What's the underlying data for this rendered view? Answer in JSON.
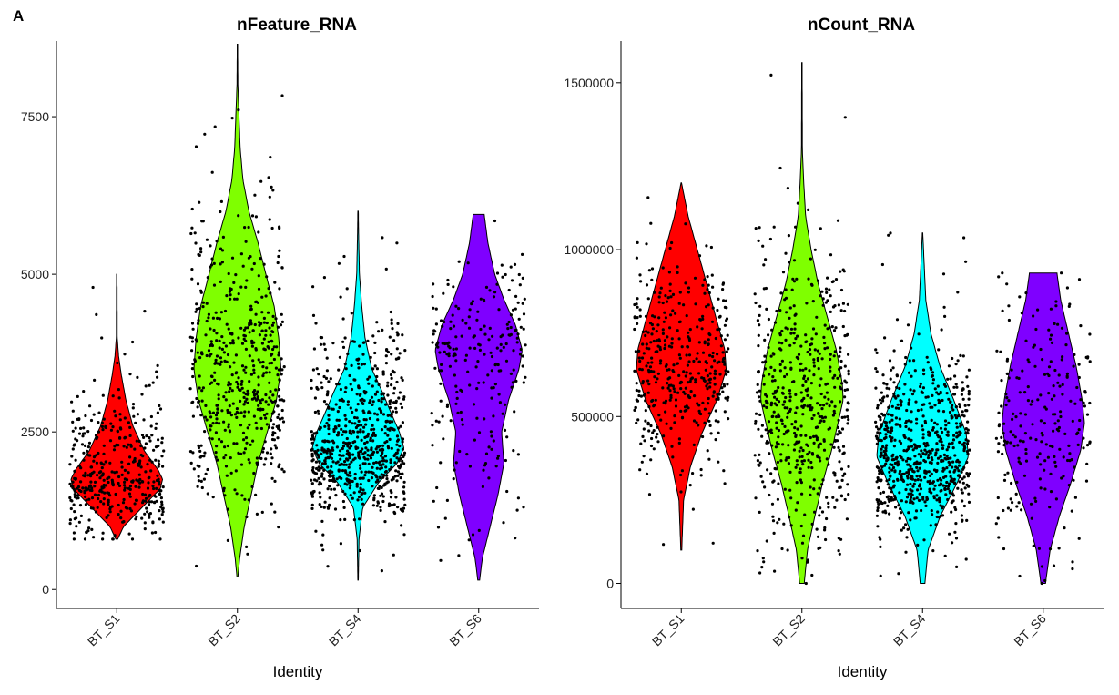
{
  "panel_label": "A",
  "chart_data": [
    {
      "type": "violin",
      "title": "nFeature_RNA",
      "xlabel": "Identity",
      "ylabel": "",
      "categories": [
        "BT_S1",
        "BT_S2",
        "BT_S4",
        "BT_S6"
      ],
      "colors": [
        "#FF0000",
        "#7FFF00",
        "#00FFFF",
        "#7F00FF"
      ],
      "ylim": [
        -300,
        8700
      ],
      "yticks": [
        0,
        2500,
        5000,
        7500
      ],
      "ytick_labels": [
        "0",
        "2500",
        "5000",
        "7500"
      ],
      "points_per_group": [
        420,
        560,
        720,
        240
      ],
      "groups": [
        {
          "name": "BT_S1",
          "min": 800,
          "max": 5000,
          "mode": 1750,
          "spread_low": 450,
          "spread_high": 700,
          "shape": [
            [
              800,
              0.02
            ],
            [
              1000,
              0.15
            ],
            [
              1300,
              0.55
            ],
            [
              1600,
              0.95
            ],
            [
              1750,
              1.0
            ],
            [
              1900,
              0.9
            ],
            [
              2200,
              0.6
            ],
            [
              2600,
              0.35
            ],
            [
              3000,
              0.2
            ],
            [
              3400,
              0.1
            ],
            [
              3700,
              0.04
            ],
            [
              4000,
              0.01
            ],
            [
              5000,
              0.005
            ]
          ]
        },
        {
          "name": "BT_S2",
          "min": 200,
          "max": 8650,
          "mode": 3500,
          "spread_low": 1100,
          "spread_high": 1200,
          "shape": [
            [
              200,
              0.01
            ],
            [
              500,
              0.05
            ],
            [
              1000,
              0.15
            ],
            [
              1500,
              0.3
            ],
            [
              2000,
              0.45
            ],
            [
              2500,
              0.65
            ],
            [
              3000,
              0.85
            ],
            [
              3500,
              0.95
            ],
            [
              4000,
              0.9
            ],
            [
              4500,
              0.8
            ],
            [
              5000,
              0.62
            ],
            [
              5500,
              0.45
            ],
            [
              6000,
              0.25
            ],
            [
              6500,
              0.12
            ],
            [
              7000,
              0.06
            ],
            [
              7500,
              0.035
            ],
            [
              8000,
              0.01
            ],
            [
              8650,
              0.004
            ]
          ]
        },
        {
          "name": "BT_S4",
          "min": 150,
          "max": 6000,
          "mode": 2250,
          "spread_low": 500,
          "spread_high": 900,
          "shape": [
            [
              150,
              0.005
            ],
            [
              800,
              0.02
            ],
            [
              1300,
              0.1
            ],
            [
              1700,
              0.45
            ],
            [
              2000,
              0.85
            ],
            [
              2250,
              1.0
            ],
            [
              2500,
              0.9
            ],
            [
              2800,
              0.72
            ],
            [
              3100,
              0.55
            ],
            [
              3500,
              0.3
            ],
            [
              4000,
              0.15
            ],
            [
              4500,
              0.08
            ],
            [
              5000,
              0.03
            ],
            [
              5500,
              0.015
            ],
            [
              6000,
              0.005
            ]
          ]
        },
        {
          "name": "BT_S6",
          "min": 150,
          "max": 5950,
          "mode": 3700,
          "spread_low": 1300,
          "spread_high": 700,
          "shape": [
            [
              150,
              0.02
            ],
            [
              500,
              0.08
            ],
            [
              1000,
              0.25
            ],
            [
              1500,
              0.42
            ],
            [
              2000,
              0.55
            ],
            [
              2500,
              0.5
            ],
            [
              3000,
              0.65
            ],
            [
              3500,
              0.88
            ],
            [
              3800,
              0.95
            ],
            [
              4200,
              0.8
            ],
            [
              4600,
              0.55
            ],
            [
              5000,
              0.35
            ],
            [
              5500,
              0.2
            ],
            [
              5950,
              0.12
            ]
          ]
        }
      ]
    },
    {
      "type": "violin",
      "title": "nCount_RNA",
      "xlabel": "Identity",
      "ylabel": "",
      "categories": [
        "BT_S1",
        "BT_S2",
        "BT_S4",
        "BT_S6"
      ],
      "colors": [
        "#FF0000",
        "#7FFF00",
        "#00FFFF",
        "#7F00FF"
      ],
      "ylim": [
        -75000,
        1625000
      ],
      "yticks": [
        0,
        500000,
        1000000,
        1500000
      ],
      "ytick_labels": [
        "0",
        "500000",
        "1000000",
        "1500000"
      ],
      "points_per_group": [
        420,
        560,
        720,
        240
      ],
      "groups": [
        {
          "name": "BT_S1",
          "min": 100000,
          "max": 1200000,
          "mode": 640000,
          "spread_low": 150000,
          "spread_high": 180000,
          "shape": [
            [
              100000,
              0.01
            ],
            [
              250000,
              0.05
            ],
            [
              350000,
              0.2
            ],
            [
              450000,
              0.45
            ],
            [
              550000,
              0.78
            ],
            [
              640000,
              0.98
            ],
            [
              700000,
              0.95
            ],
            [
              800000,
              0.75
            ],
            [
              900000,
              0.55
            ],
            [
              1000000,
              0.35
            ],
            [
              1100000,
              0.15
            ],
            [
              1200000,
              0.005
            ]
          ]
        },
        {
          "name": "BT_S2",
          "min": 0,
          "max": 1560000,
          "mode": 550000,
          "spread_low": 200000,
          "spread_high": 220000,
          "shape": [
            [
              0,
              0.05
            ],
            [
              100000,
              0.12
            ],
            [
              200000,
              0.28
            ],
            [
              300000,
              0.45
            ],
            [
              400000,
              0.65
            ],
            [
              500000,
              0.82
            ],
            [
              550000,
              0.9
            ],
            [
              600000,
              0.88
            ],
            [
              700000,
              0.75
            ],
            [
              800000,
              0.55
            ],
            [
              900000,
              0.35
            ],
            [
              1000000,
              0.2
            ],
            [
              1100000,
              0.08
            ],
            [
              1200000,
              0.04
            ],
            [
              1300000,
              0.01
            ],
            [
              1560000,
              0.004
            ]
          ]
        },
        {
          "name": "BT_S4",
          "min": 0,
          "max": 1050000,
          "mode": 380000,
          "spread_low": 120000,
          "spread_high": 150000,
          "shape": [
            [
              0,
              0.05
            ],
            [
              100000,
              0.12
            ],
            [
              200000,
              0.38
            ],
            [
              300000,
              0.75
            ],
            [
              380000,
              1.0
            ],
            [
              450000,
              0.95
            ],
            [
              550000,
              0.68
            ],
            [
              650000,
              0.38
            ],
            [
              750000,
              0.18
            ],
            [
              850000,
              0.07
            ],
            [
              1050000,
              0.005
            ]
          ]
        },
        {
          "name": "BT_S6",
          "min": 0,
          "max": 930000,
          "mode": 480000,
          "spread_low": 180000,
          "spread_high": 220000,
          "shape": [
            [
              0,
              0.05
            ],
            [
              100000,
              0.15
            ],
            [
              200000,
              0.35
            ],
            [
              300000,
              0.6
            ],
            [
              400000,
              0.82
            ],
            [
              480000,
              0.9
            ],
            [
              550000,
              0.85
            ],
            [
              650000,
              0.72
            ],
            [
              750000,
              0.55
            ],
            [
              850000,
              0.38
            ],
            [
              930000,
              0.3
            ]
          ]
        }
      ]
    }
  ]
}
